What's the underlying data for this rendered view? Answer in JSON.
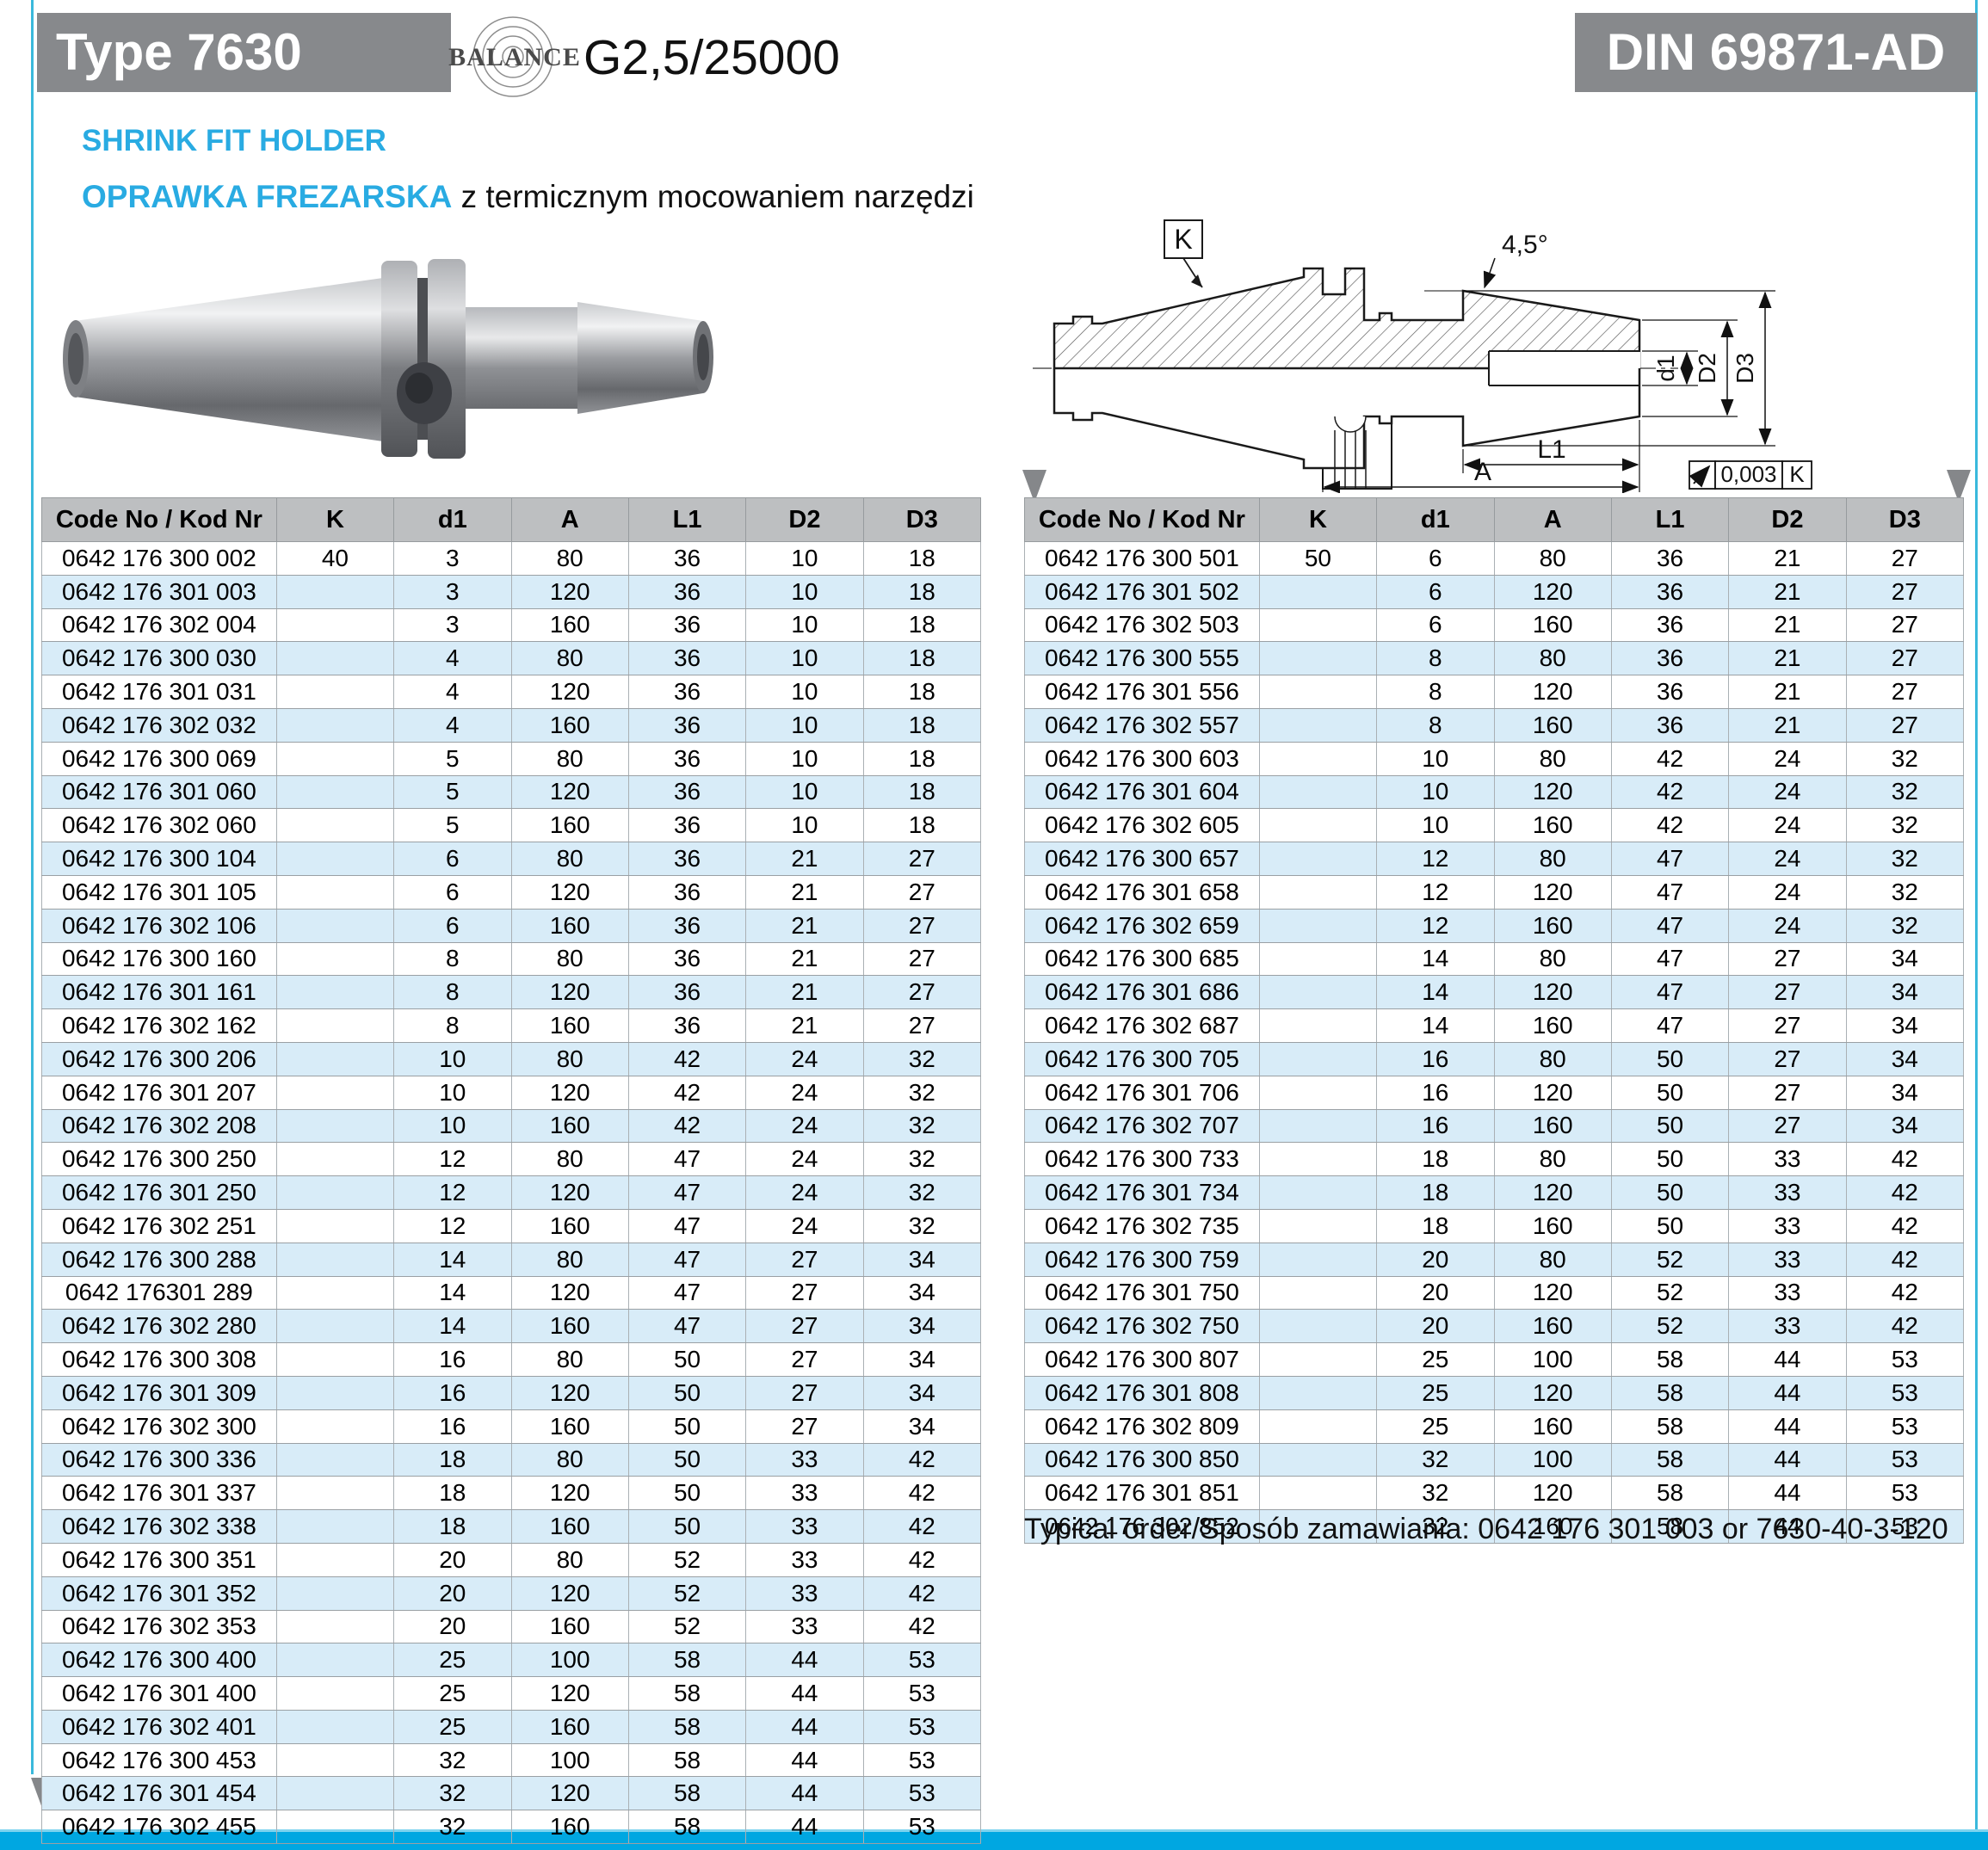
{
  "header": {
    "type_label": "Type 7630",
    "standard_label": "DIN 69871-AD",
    "balance_brand": "BALANCE",
    "balance_value": "G2,5/25000",
    "title_en": "SHRINK FIT HOLDER",
    "title_pl_highlight": "OPRAWKA FREZARSKA",
    "title_pl_rest": " z termicznym mocowaniem narzędzi"
  },
  "drawing": {
    "datum_label": "K",
    "angle_label": "4,5°",
    "dim_d1": "d1",
    "dim_d2": "D2",
    "dim_d3": "D3",
    "dim_l1": "L1",
    "dim_a": "A",
    "runout_value": "0,003",
    "runout_datum": "K"
  },
  "tables": {
    "columns": [
      "Code No / Kod Nr",
      "K",
      "d1",
      "A",
      "L1",
      "D2",
      "D3"
    ],
    "left": {
      "rows": [
        [
          "0642 176 300 002",
          "40",
          "3",
          "80",
          "36",
          "10",
          "18"
        ],
        [
          "0642 176 301 003",
          "",
          "3",
          "120",
          "36",
          "10",
          "18"
        ],
        [
          "0642 176 302 004",
          "",
          "3",
          "160",
          "36",
          "10",
          "18"
        ],
        [
          "0642 176 300 030",
          "",
          "4",
          "80",
          "36",
          "10",
          "18"
        ],
        [
          "0642 176 301 031",
          "",
          "4",
          "120",
          "36",
          "10",
          "18"
        ],
        [
          "0642 176 302 032",
          "",
          "4",
          "160",
          "36",
          "10",
          "18"
        ],
        [
          "0642 176 300 069",
          "",
          "5",
          "80",
          "36",
          "10",
          "18"
        ],
        [
          "0642 176 301 060",
          "",
          "5",
          "120",
          "36",
          "10",
          "18"
        ],
        [
          "0642 176 302 060",
          "",
          "5",
          "160",
          "36",
          "10",
          "18"
        ],
        [
          "0642 176 300 104",
          "",
          "6",
          "80",
          "36",
          "21",
          "27"
        ],
        [
          "0642 176 301 105",
          "",
          "6",
          "120",
          "36",
          "21",
          "27"
        ],
        [
          "0642 176 302 106",
          "",
          "6",
          "160",
          "36",
          "21",
          "27"
        ],
        [
          "0642 176 300 160",
          "",
          "8",
          "80",
          "36",
          "21",
          "27"
        ],
        [
          "0642 176 301 161",
          "",
          "8",
          "120",
          "36",
          "21",
          "27"
        ],
        [
          "0642 176 302 162",
          "",
          "8",
          "160",
          "36",
          "21",
          "27"
        ],
        [
          "0642 176 300 206",
          "",
          "10",
          "80",
          "42",
          "24",
          "32"
        ],
        [
          "0642 176 301 207",
          "",
          "10",
          "120",
          "42",
          "24",
          "32"
        ],
        [
          "0642 176 302 208",
          "",
          "10",
          "160",
          "42",
          "24",
          "32"
        ],
        [
          "0642 176 300 250",
          "",
          "12",
          "80",
          "47",
          "24",
          "32"
        ],
        [
          "0642 176 301 250",
          "",
          "12",
          "120",
          "47",
          "24",
          "32"
        ],
        [
          "0642 176 302 251",
          "",
          "12",
          "160",
          "47",
          "24",
          "32"
        ],
        [
          "0642 176 300 288",
          "",
          "14",
          "80",
          "47",
          "27",
          "34"
        ],
        [
          "0642 176301 289",
          "",
          "14",
          "120",
          "47",
          "27",
          "34"
        ],
        [
          "0642 176 302 280",
          "",
          "14",
          "160",
          "47",
          "27",
          "34"
        ],
        [
          "0642 176 300 308",
          "",
          "16",
          "80",
          "50",
          "27",
          "34"
        ],
        [
          "0642 176 301 309",
          "",
          "16",
          "120",
          "50",
          "27",
          "34"
        ],
        [
          "0642 176 302 300",
          "",
          "16",
          "160",
          "50",
          "27",
          "34"
        ],
        [
          "0642 176 300 336",
          "",
          "18",
          "80",
          "50",
          "33",
          "42"
        ],
        [
          "0642 176 301 337",
          "",
          "18",
          "120",
          "50",
          "33",
          "42"
        ],
        [
          "0642 176 302 338",
          "",
          "18",
          "160",
          "50",
          "33",
          "42"
        ],
        [
          "0642 176 300 351",
          "",
          "20",
          "80",
          "52",
          "33",
          "42"
        ],
        [
          "0642 176 301 352",
          "",
          "20",
          "120",
          "52",
          "33",
          "42"
        ],
        [
          "0642 176 302 353",
          "",
          "20",
          "160",
          "52",
          "33",
          "42"
        ],
        [
          "0642 176 300 400",
          "",
          "25",
          "100",
          "58",
          "44",
          "53"
        ],
        [
          "0642 176 301 400",
          "",
          "25",
          "120",
          "58",
          "44",
          "53"
        ],
        [
          "0642 176 302 401",
          "",
          "25",
          "160",
          "58",
          "44",
          "53"
        ],
        [
          "0642 176 300 453",
          "",
          "32",
          "100",
          "58",
          "44",
          "53"
        ],
        [
          "0642 176 301 454",
          "",
          "32",
          "120",
          "58",
          "44",
          "53"
        ],
        [
          "0642 176 302 455",
          "",
          "32",
          "160",
          "58",
          "44",
          "53"
        ]
      ]
    },
    "right": {
      "rows": [
        [
          "0642 176 300 501",
          "50",
          "6",
          "80",
          "36",
          "21",
          "27"
        ],
        [
          "0642 176 301 502",
          "",
          "6",
          "120",
          "36",
          "21",
          "27"
        ],
        [
          "0642 176 302 503",
          "",
          "6",
          "160",
          "36",
          "21",
          "27"
        ],
        [
          "0642 176 300 555",
          "",
          "8",
          "80",
          "36",
          "21",
          "27"
        ],
        [
          "0642 176 301 556",
          "",
          "8",
          "120",
          "36",
          "21",
          "27"
        ],
        [
          "0642 176 302 557",
          "",
          "8",
          "160",
          "36",
          "21",
          "27"
        ],
        [
          "0642 176 300 603",
          "",
          "10",
          "80",
          "42",
          "24",
          "32"
        ],
        [
          "0642 176 301 604",
          "",
          "10",
          "120",
          "42",
          "24",
          "32"
        ],
        [
          "0642 176 302 605",
          "",
          "10",
          "160",
          "42",
          "24",
          "32"
        ],
        [
          "0642 176 300 657",
          "",
          "12",
          "80",
          "47",
          "24",
          "32"
        ],
        [
          "0642 176 301 658",
          "",
          "12",
          "120",
          "47",
          "24",
          "32"
        ],
        [
          "0642 176 302 659",
          "",
          "12",
          "160",
          "47",
          "24",
          "32"
        ],
        [
          "0642 176 300 685",
          "",
          "14",
          "80",
          "47",
          "27",
          "34"
        ],
        [
          "0642 176 301 686",
          "",
          "14",
          "120",
          "47",
          "27",
          "34"
        ],
        [
          "0642 176 302 687",
          "",
          "14",
          "160",
          "47",
          "27",
          "34"
        ],
        [
          "0642 176 300 705",
          "",
          "16",
          "80",
          "50",
          "27",
          "34"
        ],
        [
          "0642 176 301 706",
          "",
          "16",
          "120",
          "50",
          "27",
          "34"
        ],
        [
          "0642 176 302 707",
          "",
          "16",
          "160",
          "50",
          "27",
          "34"
        ],
        [
          "0642 176 300 733",
          "",
          "18",
          "80",
          "50",
          "33",
          "42"
        ],
        [
          "0642 176 301 734",
          "",
          "18",
          "120",
          "50",
          "33",
          "42"
        ],
        [
          "0642 176 302 735",
          "",
          "18",
          "160",
          "50",
          "33",
          "42"
        ],
        [
          "0642 176 300 759",
          "",
          "20",
          "80",
          "52",
          "33",
          "42"
        ],
        [
          "0642 176 301 750",
          "",
          "20",
          "120",
          "52",
          "33",
          "42"
        ],
        [
          "0642 176 302 750",
          "",
          "20",
          "160",
          "52",
          "33",
          "42"
        ],
        [
          "0642 176 300 807",
          "",
          "25",
          "100",
          "58",
          "44",
          "53"
        ],
        [
          "0642 176 301 808",
          "",
          "25",
          "120",
          "58",
          "44",
          "53"
        ],
        [
          "0642 176 302 809",
          "",
          "25",
          "160",
          "58",
          "44",
          "53"
        ],
        [
          "0642 176 300 850",
          "",
          "32",
          "100",
          "58",
          "44",
          "53"
        ],
        [
          "0642 176 301 851",
          "",
          "32",
          "120",
          "58",
          "44",
          "53"
        ],
        [
          "0642 176 302 852",
          "",
          "32",
          "160",
          "58",
          "44",
          "53"
        ]
      ]
    }
  },
  "footer": {
    "typical_order": "Typical order/Sposób zamawiania: 0642 176 301 003 or 7630-40-3-120"
  },
  "colors": {
    "accent_cyan": "#29abe2",
    "bar_cyan": "#00a7e1",
    "badge_gray": "#87898c",
    "table_header_gray": "#bdbfc1",
    "row_blue": "#d8ecf8"
  }
}
